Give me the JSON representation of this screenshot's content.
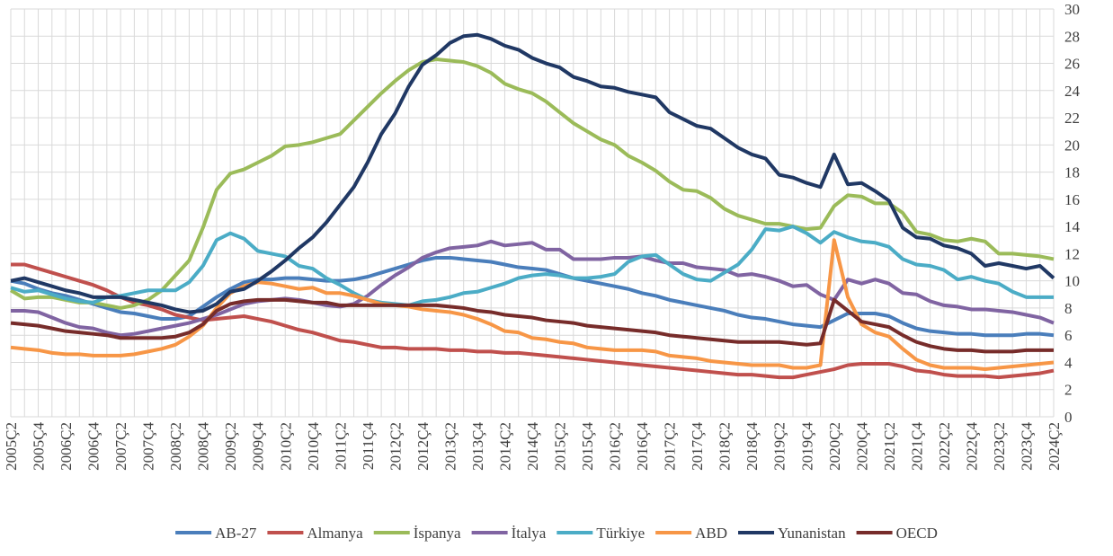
{
  "chart_data": {
    "type": "line",
    "categories": [
      "2005Ç2",
      null,
      "2005Ç4",
      null,
      "2006Ç2",
      null,
      "2006Ç4",
      null,
      "2007Ç2",
      null,
      "2007Ç4",
      null,
      "2008Ç2",
      null,
      "2008Ç4",
      null,
      "2009Ç2",
      null,
      "2009Ç4",
      null,
      "2010Ç2",
      null,
      "2010Ç4",
      null,
      "2011Ç2",
      null,
      "2011Ç4",
      null,
      "2012Ç2",
      null,
      "2012Ç4",
      null,
      "2013Ç2",
      null,
      "2013Ç4",
      null,
      "2014Ç2",
      null,
      "2014Ç4",
      null,
      "2015Ç2",
      null,
      "2015Ç4",
      null,
      "2016Ç2",
      null,
      "2016Ç4",
      null,
      "2017Ç2",
      null,
      "2017Ç4",
      null,
      "2018Ç2",
      null,
      "2018Ç4",
      null,
      "2019Ç2",
      null,
      "2019Ç4",
      null,
      "2020Ç2",
      null,
      "2020Ç4",
      null,
      "2021Ç2",
      null,
      "2021Ç4",
      null,
      "2022Ç2",
      null,
      "2022Ç4",
      null,
      "2023Ç2",
      null,
      "2023Ç4",
      null,
      "2024Ç2"
    ],
    "series": [
      {
        "name": "AB-27",
        "color": "#4a7ebb",
        "values": [
          10.0,
          9.8,
          9.4,
          9.1,
          8.9,
          8.6,
          8.3,
          8.0,
          7.7,
          7.6,
          7.4,
          7.2,
          7.2,
          7.4,
          8.1,
          8.8,
          9.4,
          9.9,
          10.1,
          10.1,
          10.2,
          10.2,
          10.1,
          10.0,
          10.0,
          10.1,
          10.3,
          10.6,
          10.9,
          11.2,
          11.5,
          11.7,
          11.7,
          11.6,
          11.5,
          11.4,
          11.2,
          11.0,
          10.9,
          10.8,
          10.5,
          10.2,
          10.0,
          9.8,
          9.6,
          9.4,
          9.1,
          8.9,
          8.6,
          8.4,
          8.2,
          8.0,
          7.8,
          7.5,
          7.3,
          7.2,
          7.0,
          6.8,
          6.7,
          6.6,
          7.1,
          7.6,
          7.6,
          7.6,
          7.4,
          6.9,
          6.5,
          6.3,
          6.2,
          6.1,
          6.1,
          6.0,
          6.0,
          6.0,
          6.1,
          6.1,
          6.0
        ]
      },
      {
        "name": "Almanya",
        "color": "#c0504d",
        "values": [
          11.2,
          11.2,
          10.9,
          10.6,
          10.3,
          10.0,
          9.7,
          9.3,
          8.8,
          8.4,
          8.2,
          7.9,
          7.5,
          7.3,
          7.1,
          7.2,
          7.3,
          7.4,
          7.2,
          7.0,
          6.7,
          6.4,
          6.2,
          5.9,
          5.6,
          5.5,
          5.3,
          5.1,
          5.1,
          5.0,
          5.0,
          5.0,
          4.9,
          4.9,
          4.8,
          4.8,
          4.7,
          4.7,
          4.6,
          4.5,
          4.4,
          4.3,
          4.2,
          4.1,
          4.0,
          3.9,
          3.8,
          3.7,
          3.6,
          3.5,
          3.4,
          3.3,
          3.2,
          3.1,
          3.1,
          3.0,
          2.9,
          2.9,
          3.1,
          3.3,
          3.5,
          3.8,
          3.9,
          3.9,
          3.9,
          3.7,
          3.4,
          3.3,
          3.1,
          3.0,
          3.0,
          3.0,
          2.9,
          3.0,
          3.1,
          3.2,
          3.4
        ]
      },
      {
        "name": "İspanya",
        "color": "#9bbb59",
        "values": [
          9.3,
          8.7,
          8.8,
          8.8,
          8.6,
          8.4,
          8.4,
          8.2,
          8.0,
          8.2,
          8.6,
          9.3,
          10.4,
          11.5,
          13.9,
          16.7,
          17.9,
          18.2,
          18.7,
          19.2,
          19.9,
          20.0,
          20.2,
          20.5,
          20.8,
          21.8,
          22.8,
          23.8,
          24.7,
          25.5,
          26.1,
          26.3,
          26.2,
          26.1,
          25.8,
          25.3,
          24.5,
          24.1,
          23.8,
          23.2,
          22.4,
          21.6,
          21.0,
          20.4,
          20.0,
          19.2,
          18.7,
          18.1,
          17.3,
          16.7,
          16.6,
          16.1,
          15.3,
          14.8,
          14.5,
          14.2,
          14.2,
          14.0,
          13.8,
          13.9,
          15.5,
          16.3,
          16.2,
          15.7,
          15.7,
          15.0,
          13.6,
          13.4,
          13.0,
          12.9,
          13.1,
          12.9,
          12.0,
          12.0,
          11.9,
          11.8,
          11.6
        ]
      },
      {
        "name": "İtalya",
        "color": "#8064a2",
        "values": [
          7.8,
          7.8,
          7.7,
          7.3,
          6.9,
          6.6,
          6.5,
          6.2,
          6.0,
          6.1,
          6.3,
          6.5,
          6.7,
          6.9,
          7.2,
          7.5,
          7.9,
          8.3,
          8.5,
          8.6,
          8.7,
          8.6,
          8.4,
          8.2,
          8.1,
          8.3,
          8.9,
          9.7,
          10.4,
          11.0,
          11.7,
          12.1,
          12.4,
          12.5,
          12.6,
          12.9,
          12.6,
          12.7,
          12.8,
          12.3,
          12.3,
          11.6,
          11.6,
          11.6,
          11.7,
          11.7,
          11.8,
          11.5,
          11.3,
          11.3,
          11.0,
          10.9,
          10.8,
          10.4,
          10.5,
          10.3,
          10.0,
          9.6,
          9.7,
          9.0,
          8.6,
          10.1,
          9.8,
          10.1,
          9.8,
          9.1,
          9.0,
          8.5,
          8.2,
          8.1,
          7.9,
          7.9,
          7.8,
          7.7,
          7.5,
          7.3,
          6.9
        ]
      },
      {
        "name": "Türkiye",
        "color": "#4bacc6",
        "values": [
          9.5,
          9.2,
          9.3,
          9.0,
          8.7,
          8.5,
          8.4,
          8.8,
          8.9,
          9.1,
          9.3,
          9.3,
          9.3,
          9.9,
          11.1,
          13.0,
          13.5,
          13.1,
          12.2,
          12.0,
          11.8,
          11.1,
          10.9,
          10.2,
          9.7,
          9.1,
          8.6,
          8.4,
          8.3,
          8.2,
          8.5,
          8.6,
          8.8,
          9.1,
          9.2,
          9.5,
          9.8,
          10.2,
          10.4,
          10.5,
          10.4,
          10.2,
          10.2,
          10.3,
          10.5,
          11.4,
          11.8,
          11.9,
          11.2,
          10.5,
          10.1,
          10.0,
          10.6,
          11.2,
          12.3,
          13.8,
          13.7,
          14.0,
          13.5,
          12.8,
          13.6,
          13.2,
          12.9,
          12.8,
          12.5,
          11.6,
          11.2,
          11.1,
          10.8,
          10.1,
          10.3,
          10.0,
          9.8,
          9.2,
          8.8,
          8.8,
          8.8
        ]
      },
      {
        "name": "ABD",
        "color": "#f79646",
        "values": [
          5.1,
          5.0,
          4.9,
          4.7,
          4.6,
          4.6,
          4.5,
          4.5,
          4.5,
          4.6,
          4.8,
          5.0,
          5.3,
          5.9,
          6.7,
          8.0,
          9.1,
          9.6,
          9.9,
          9.8,
          9.6,
          9.4,
          9.5,
          9.1,
          9.1,
          8.9,
          8.6,
          8.3,
          8.2,
          8.1,
          7.9,
          7.8,
          7.7,
          7.5,
          7.2,
          6.8,
          6.3,
          6.2,
          5.8,
          5.7,
          5.5,
          5.4,
          5.1,
          5.0,
          4.9,
          4.9,
          4.9,
          4.8,
          4.5,
          4.4,
          4.3,
          4.1,
          4.0,
          3.9,
          3.8,
          3.8,
          3.8,
          3.6,
          3.6,
          3.8,
          13.0,
          8.8,
          6.8,
          6.2,
          5.9,
          5.0,
          4.2,
          3.8,
          3.6,
          3.6,
          3.6,
          3.5,
          3.6,
          3.7,
          3.8,
          3.9,
          4.0
        ]
      },
      {
        "name": "Yunanistan",
        "color": "#203864",
        "values": [
          10.0,
          10.2,
          9.9,
          9.6,
          9.3,
          9.1,
          8.8,
          8.8,
          8.8,
          8.6,
          8.4,
          8.2,
          7.9,
          7.7,
          7.8,
          8.3,
          9.2,
          9.4,
          10.0,
          10.7,
          11.5,
          12.4,
          13.2,
          14.3,
          15.6,
          16.9,
          18.7,
          20.8,
          22.3,
          24.3,
          25.9,
          26.6,
          27.5,
          28.0,
          28.1,
          27.8,
          27.3,
          27.0,
          26.4,
          26.0,
          25.7,
          25.0,
          24.7,
          24.3,
          24.2,
          23.9,
          23.7,
          23.5,
          22.4,
          21.9,
          21.4,
          21.2,
          20.5,
          19.8,
          19.3,
          19.0,
          17.8,
          17.6,
          17.2,
          16.9,
          19.3,
          17.1,
          17.2,
          16.6,
          15.9,
          13.9,
          13.2,
          13.1,
          12.6,
          12.4,
          12.0,
          11.1,
          11.3,
          11.1,
          10.9,
          11.1,
          10.2
        ]
      },
      {
        "name": "OECD",
        "color": "#772c2a",
        "values": [
          6.9,
          6.8,
          6.7,
          6.5,
          6.3,
          6.2,
          6.1,
          6.0,
          5.8,
          5.8,
          5.8,
          5.8,
          5.9,
          6.2,
          6.8,
          7.8,
          8.3,
          8.5,
          8.6,
          8.6,
          8.6,
          8.5,
          8.4,
          8.4,
          8.2,
          8.2,
          8.2,
          8.2,
          8.2,
          8.2,
          8.2,
          8.2,
          8.1,
          8.0,
          7.8,
          7.7,
          7.5,
          7.4,
          7.3,
          7.1,
          7.0,
          6.9,
          6.7,
          6.6,
          6.5,
          6.4,
          6.3,
          6.2,
          6.0,
          5.9,
          5.8,
          5.7,
          5.6,
          5.5,
          5.5,
          5.5,
          5.5,
          5.4,
          5.3,
          5.4,
          8.6,
          7.8,
          7.0,
          6.8,
          6.6,
          6.0,
          5.5,
          5.2,
          5.0,
          4.9,
          4.9,
          4.8,
          4.8,
          4.8,
          4.9,
          4.9,
          4.9
        ]
      }
    ],
    "ylim": [
      0,
      30
    ],
    "yticks": [
      0,
      2,
      4,
      6,
      8,
      10,
      12,
      14,
      16,
      18,
      20,
      22,
      24,
      26,
      28,
      30
    ],
    "grid": true,
    "legend": "bottom"
  }
}
